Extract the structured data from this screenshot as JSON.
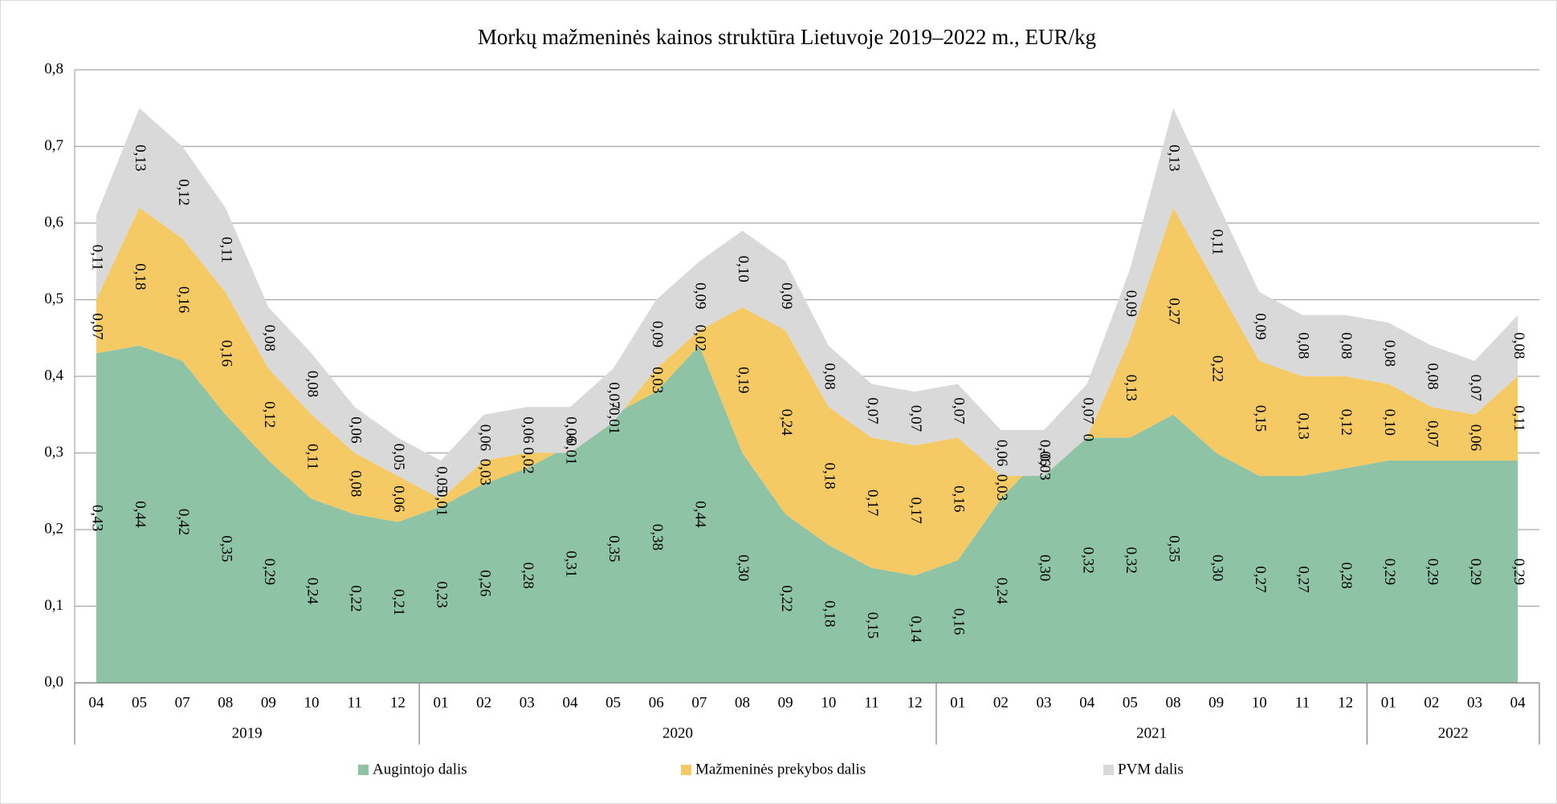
{
  "chart_data": {
    "type": "stacked_area",
    "title": "Morkų mažmeninės kainos struktūra Lietuvoje 2019–2022 m., EUR/kg",
    "year_groups": [
      {
        "label": "2019",
        "categories": [
          "04",
          "05",
          "07",
          "08",
          "09",
          "10",
          "11",
          "12"
        ]
      },
      {
        "label": "2020",
        "categories": [
          "01",
          "02",
          "03",
          "04",
          "05",
          "06",
          "07",
          "08",
          "09",
          "10",
          "11",
          "12"
        ]
      },
      {
        "label": "2021",
        "categories": [
          "01",
          "02",
          "03",
          "04",
          "05",
          "08",
          "09",
          "10",
          "11",
          "12"
        ]
      },
      {
        "label": "2022",
        "categories": [
          "01",
          "02",
          "03",
          "04"
        ]
      }
    ],
    "series": [
      {
        "name": "Augintojo dalis",
        "color": "#8fc3a6",
        "values": [
          0.43,
          0.44,
          0.42,
          0.35,
          0.29,
          0.24,
          0.22,
          0.21,
          0.23,
          0.26,
          0.28,
          0.31,
          0.35,
          0.38,
          0.44,
          0.3,
          0.22,
          0.18,
          0.15,
          0.14,
          0.16,
          0.24,
          0.3,
          0.32,
          0.32,
          0.35,
          0.3,
          0.27,
          0.27,
          0.28,
          0.29,
          0.29,
          0.29,
          0.29
        ],
        "value_labels": [
          "0,43",
          "0,44",
          "0,42",
          "0,35",
          "0,29",
          "0,24",
          "0,22",
          "0,21",
          "0,23",
          "0,26",
          "0,28",
          "0,31",
          "0,35",
          "0,38",
          "0,44",
          "0,30",
          "0,22",
          "0,18",
          "0,15",
          "0,14",
          "0,16",
          "0,24",
          "0,30",
          "0,32",
          "0,32",
          "0,35",
          "0,30",
          "0,27",
          "0,27",
          "0,28",
          "0,29",
          "0,29",
          "0,29",
          "0,29"
        ]
      },
      {
        "name": "Mažmeninės prekybos dalis",
        "color": "#f5c964",
        "values": [
          0.07,
          0.18,
          0.16,
          0.16,
          0.12,
          0.11,
          0.08,
          0.06,
          0.01,
          0.03,
          0.02,
          -0.01,
          -0.01,
          0.03,
          0.02,
          0.19,
          0.24,
          0.18,
          0.17,
          0.17,
          0.16,
          0.03,
          -0.03,
          0,
          0.13,
          0.27,
          0.22,
          0.15,
          0.13,
          0.12,
          0.1,
          0.07,
          0.06,
          0.11
        ],
        "value_labels": [
          "0,07",
          "0,18",
          "0,16",
          "0,16",
          "0,12",
          "0,11",
          "0,08",
          "0,06",
          "0,01",
          "0,03",
          "0,02",
          "-0,01",
          "-0,01",
          "0,03",
          "0,02",
          "0,19",
          "0,24",
          "0,18",
          "0,17",
          "0,17",
          "0,16",
          "0,03",
          "-0,03",
          "0",
          "0,13",
          "0,27",
          "0,22",
          "0,15",
          "0,13",
          "0,12",
          "0,10",
          "0,07",
          "0,06",
          "0,11"
        ]
      },
      {
        "name": "PVM dalis",
        "color": "#d9d9d9",
        "values": [
          0.11,
          0.13,
          0.12,
          0.11,
          0.08,
          0.08,
          0.06,
          0.05,
          0.05,
          0.06,
          0.06,
          0.06,
          0.07,
          0.09,
          0.09,
          0.1,
          0.09,
          0.08,
          0.07,
          0.07,
          0.07,
          0.06,
          0.06,
          0.07,
          0.09,
          0.13,
          0.11,
          0.09,
          0.08,
          0.08,
          0.08,
          0.08,
          0.07,
          0.08
        ],
        "value_labels": [
          "0,11",
          "0,13",
          "0,12",
          "0,11",
          "0,08",
          "0,08",
          "0,06",
          "0,05",
          "0,05",
          "0,06",
          "0,06",
          "0,06",
          "0,07",
          "0,09",
          "0,09",
          "0,10",
          "0,09",
          "0,08",
          "0,07",
          "0,07",
          "0,07",
          "0,06",
          "0,06",
          "0,07",
          "0,09",
          "0,13",
          "0,11",
          "0,09",
          "0,08",
          "0,08",
          "0,08",
          "0,08",
          "0,07",
          "0,08"
        ]
      }
    ],
    "ylim": [
      0,
      0.8
    ],
    "yticks": [
      {
        "value": 0,
        "label": "0,0"
      },
      {
        "value": 0.1,
        "label": "0,1"
      },
      {
        "value": 0.2,
        "label": "0,2"
      },
      {
        "value": 0.3,
        "label": "0,3"
      },
      {
        "value": 0.4,
        "label": "0,4"
      },
      {
        "value": 0.5,
        "label": "0,5"
      },
      {
        "value": 0.6,
        "label": "0,6"
      },
      {
        "value": 0.7,
        "label": "0,7"
      },
      {
        "value": 0.8,
        "label": "0,8"
      }
    ],
    "grid": true,
    "legend": "bottom"
  }
}
